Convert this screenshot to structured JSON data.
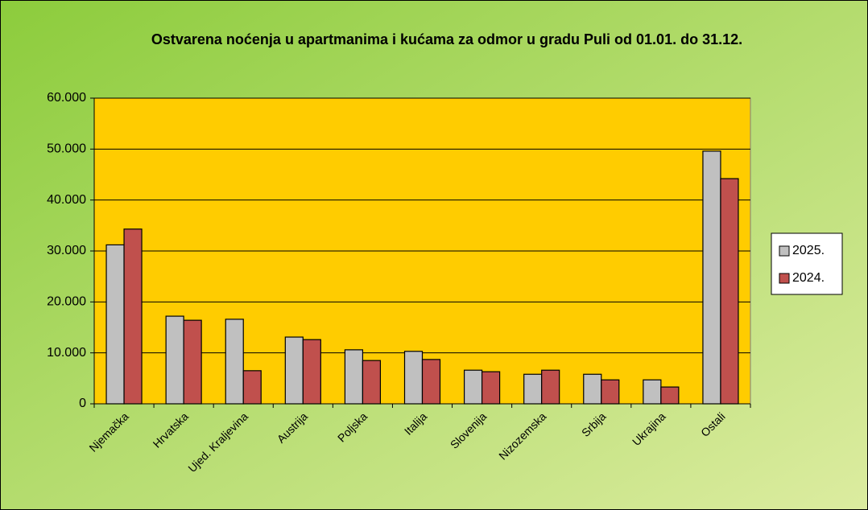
{
  "chart_data": {
    "type": "bar",
    "title": "Ostvarena noćenja u apartmanima i kućama za odmor u gradu Puli od 01.01. do 31.12.",
    "categories": [
      "Njemačka",
      "Hrvatska",
      "Ujed. Kraljevina",
      "Austrija",
      "Poljska",
      "Italija",
      "Slovenija",
      "Nizozemska",
      "Srbija",
      "Ukrajina",
      "Ostali"
    ],
    "series": [
      {
        "name": "2025.",
        "color": "#c0c0c0",
        "values": [
          31200,
          17200,
          16600,
          13100,
          10600,
          10300,
          6600,
          5800,
          5800,
          4700,
          49600
        ]
      },
      {
        "name": "2024.",
        "color": "#c0504d",
        "values": [
          34300,
          16400,
          6500,
          12600,
          8500,
          8700,
          6300,
          6600,
          4700,
          3300,
          44200
        ]
      }
    ],
    "ylim": [
      0,
      60000
    ],
    "yticks": [
      0,
      {
        "value": 10000,
        "label": "10.000"
      },
      {
        "value": 20000,
        "label": "20.000"
      },
      {
        "value": 30000,
        "label": "30.000"
      },
      {
        "value": 40000,
        "label": "40.000"
      },
      {
        "value": 50000,
        "label": "50.000"
      },
      {
        "value": 60000,
        "label": "60.000"
      }
    ],
    "grid": true,
    "legend": "right"
  }
}
